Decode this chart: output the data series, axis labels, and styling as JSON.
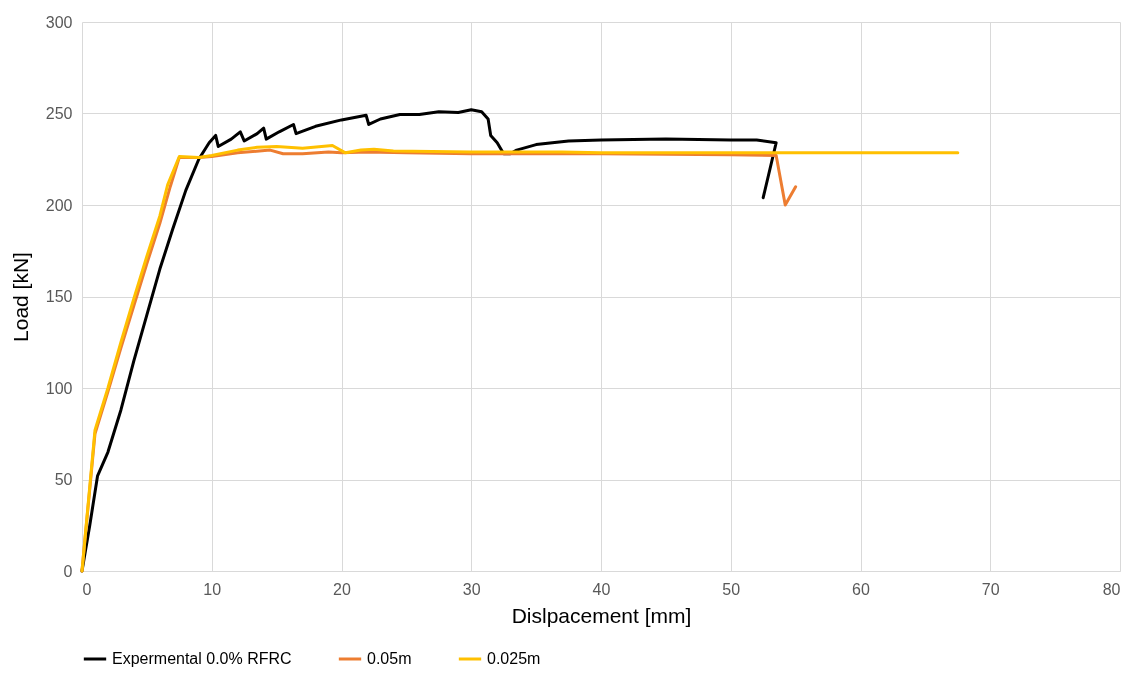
{
  "chart_data": {
    "type": "line",
    "xlabel": "Dislpacement [mm]",
    "ylabel": "Load [kN]",
    "xlim": [
      0,
      80
    ],
    "xticks": [
      0,
      10,
      20,
      30,
      40,
      50,
      60,
      70,
      80
    ],
    "ylim": [
      0,
      300
    ],
    "yticks": [
      0,
      50,
      100,
      150,
      200,
      250,
      300
    ],
    "grid": true,
    "legend": "bottom",
    "marker": "none",
    "line_style": "solid",
    "series": [
      {
        "name": "Expermental 0.0% RFRC",
        "color": "#000000",
        "x": [
          0,
          0.6,
          1.2,
          2,
          3,
          4,
          5,
          6,
          7,
          8,
          9,
          9.8,
          10.3,
          10.5,
          11.5,
          12.2,
          12.5,
          13.5,
          14,
          14.2,
          15.2,
          16.3,
          16.5,
          18,
          20,
          21.9,
          22.1,
          23,
          24.5,
          26,
          27.5,
          29,
          30,
          30.8,
          31.3,
          31.5,
          32,
          32.5,
          33,
          33.5,
          35,
          37.5,
          40,
          45,
          50,
          52,
          53.5,
          52.5
        ],
        "values": [
          0,
          25,
          52,
          65,
          88,
          115,
          140,
          165,
          187,
          208,
          225,
          234,
          238,
          232,
          236,
          240,
          235,
          239,
          242,
          236,
          240,
          244,
          239,
          243,
          246.5,
          249,
          244,
          247,
          249.5,
          249.5,
          251,
          250.5,
          252,
          251,
          247,
          238,
          234,
          228,
          228,
          230,
          233,
          235,
          235.5,
          236,
          235.5,
          235.5,
          234,
          204
        ]
      },
      {
        "name": "0.05m",
        "color": "#ed7d31",
        "x": [
          0,
          1,
          2,
          3,
          4,
          5,
          6,
          6.8,
          7.5,
          9,
          10,
          12,
          14.5,
          15.5,
          17,
          19,
          20,
          22,
          25,
          30,
          40,
          50,
          53.5,
          54.2,
          55
        ],
        "values": [
          0,
          75,
          98,
          122,
          145,
          168,
          190,
          210,
          226,
          226,
          226.5,
          228.5,
          230,
          228,
          228,
          229,
          228.5,
          229,
          228.5,
          228,
          228,
          227.5,
          227,
          200,
          210
        ]
      },
      {
        "name": "0.025m",
        "color": "#ffc000",
        "x": [
          0,
          1,
          2,
          3,
          4,
          5,
          6,
          6.6,
          7.5,
          9,
          10,
          12,
          13.5,
          15,
          17,
          19.3,
          20.3,
          21.5,
          22.5,
          24,
          30,
          37,
          40,
          53.5,
          54,
          67.5
        ],
        "values": [
          0,
          77,
          100,
          125,
          149,
          172,
          194,
          211,
          226.5,
          226,
          227,
          230,
          231.5,
          232,
          231,
          232.5,
          228.5,
          230,
          230.5,
          229.5,
          229,
          229,
          228.5,
          228.5,
          228.5,
          228.5
        ]
      }
    ]
  }
}
